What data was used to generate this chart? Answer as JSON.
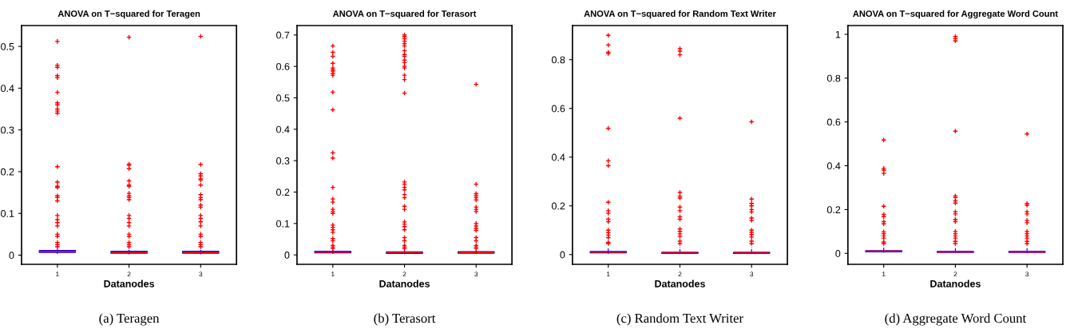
{
  "chart_data": [
    {
      "type": "box",
      "title": "ANOVA on T−squared for Teragen",
      "xlabel": "Datanodes",
      "categories": [
        "1",
        "2",
        "3"
      ],
      "color": "#0000ff",
      "ylim": [
        -0.022,
        0.55
      ],
      "yticks": [
        0,
        0.1,
        0.2,
        0.3,
        0.4,
        0.5
      ],
      "annotations": [
        "(a) Teragen"
      ],
      "grid": false,
      "legend": false,
      "boxes": [
        {
          "low": 0.003,
          "q1": 0.007,
          "median": 0.009,
          "q3": 0.011,
          "high": 0.015,
          "outliers": [
            0.512,
            0.455,
            0.45,
            0.43,
            0.425,
            0.39,
            0.365,
            0.36,
            0.35,
            0.345,
            0.34,
            0.212,
            0.175,
            0.165,
            0.162,
            0.142,
            0.138,
            0.13,
            0.095,
            0.085,
            0.078,
            0.07,
            0.05,
            0.045,
            0.03,
            0.025,
            0.02
          ]
        },
        {
          "low": 0.002,
          "q1": 0.005,
          "median": 0.007,
          "q3": 0.009,
          "high": 0.013,
          "outliers": [
            0.522,
            0.218,
            0.215,
            0.207,
            0.178,
            0.168,
            0.165,
            0.148,
            0.142,
            0.138,
            0.133,
            0.095,
            0.088,
            0.078,
            0.07,
            0.05,
            0.045,
            0.03,
            0.025,
            0.02
          ]
        },
        {
          "low": 0.002,
          "q1": 0.005,
          "median": 0.007,
          "q3": 0.009,
          "high": 0.013,
          "outliers": [
            0.524,
            0.217,
            0.195,
            0.19,
            0.183,
            0.18,
            0.168,
            0.145,
            0.138,
            0.133,
            0.12,
            0.115,
            0.095,
            0.088,
            0.08,
            0.07,
            0.05,
            0.045,
            0.03,
            0.025,
            0.02
          ]
        }
      ]
    },
    {
      "type": "box",
      "title": "ANOVA on T−squared for Terasort",
      "xlabel": "Datanodes",
      "categories": [
        "1",
        "2",
        "3"
      ],
      "color": "#0000ff",
      "ylim": [
        -0.03,
        0.73
      ],
      "yticks": [
        0,
        0.1,
        0.2,
        0.3,
        0.4,
        0.5,
        0.6,
        0.7
      ],
      "annotations": [
        "(b) Terasort"
      ],
      "grid": false,
      "legend": false,
      "boxes": [
        {
          "low": 0.003,
          "q1": 0.007,
          "median": 0.009,
          "q3": 0.011,
          "high": 0.015,
          "outliers": [
            0.665,
            0.645,
            0.632,
            0.61,
            0.595,
            0.59,
            0.585,
            0.578,
            0.572,
            0.518,
            0.462,
            0.325,
            0.308,
            0.215,
            0.178,
            0.168,
            0.145,
            0.138,
            0.132,
            0.095,
            0.088,
            0.08,
            0.072,
            0.052,
            0.045,
            0.03,
            0.025,
            0.02
          ]
        },
        {
          "low": 0.002,
          "q1": 0.005,
          "median": 0.007,
          "q3": 0.009,
          "high": 0.013,
          "outliers": [
            0.7,
            0.695,
            0.688,
            0.68,
            0.672,
            0.665,
            0.65,
            0.638,
            0.632,
            0.62,
            0.612,
            0.6,
            0.595,
            0.572,
            0.558,
            0.515,
            0.232,
            0.225,
            0.215,
            0.207,
            0.192,
            0.182,
            0.155,
            0.145,
            0.105,
            0.098,
            0.09,
            0.08,
            0.055,
            0.045,
            0.03,
            0.025,
            0.02
          ]
        },
        {
          "low": 0.003,
          "q1": 0.006,
          "median": 0.008,
          "q3": 0.01,
          "high": 0.014,
          "outliers": [
            0.543,
            0.225,
            0.195,
            0.188,
            0.182,
            0.175,
            0.152,
            0.145,
            0.138,
            0.1,
            0.092,
            0.085,
            0.078,
            0.055,
            0.045,
            0.03,
            0.025,
            0.02
          ]
        }
      ]
    },
    {
      "type": "box",
      "title": "ANOVA on T−squared for Random Text Writer",
      "xlabel": "Datanodes",
      "categories": [
        "1",
        "2",
        "3"
      ],
      "color": "#0000ff",
      "ylim": [
        -0.04,
        0.94
      ],
      "yticks": [
        0,
        0.2,
        0.4,
        0.6,
        0.8
      ],
      "annotations": [
        "(c) Random Text Writer"
      ],
      "grid": false,
      "legend": false,
      "boxes": [
        {
          "low": 0.003,
          "q1": 0.008,
          "median": 0.01,
          "q3": 0.012,
          "high": 0.03,
          "outliers": [
            0.9,
            0.86,
            0.83,
            0.825,
            0.518,
            0.385,
            0.365,
            0.215,
            0.18,
            0.17,
            0.145,
            0.135,
            0.1,
            0.09,
            0.08,
            0.07,
            0.05,
            0.045
          ]
        },
        {
          "low": 0.002,
          "q1": 0.005,
          "median": 0.007,
          "q3": 0.009,
          "high": 0.03,
          "outliers": [
            0.845,
            0.835,
            0.82,
            0.56,
            0.255,
            0.24,
            0.232,
            0.195,
            0.18,
            0.155,
            0.145,
            0.105,
            0.095,
            0.085,
            0.075,
            0.055,
            0.045
          ]
        },
        {
          "low": 0.002,
          "q1": 0.005,
          "median": 0.007,
          "q3": 0.009,
          "high": 0.03,
          "outliers": [
            0.545,
            0.228,
            0.21,
            0.2,
            0.185,
            0.175,
            0.15,
            0.14,
            0.1,
            0.092,
            0.082,
            0.072,
            0.055,
            0.045
          ]
        }
      ]
    },
    {
      "type": "box",
      "title": "ANOVA on T−squared for Aggregate Word Count",
      "xlabel": "Datanodes",
      "categories": [
        "1",
        "2",
        "3"
      ],
      "color": "#0000ff",
      "ylim": [
        -0.05,
        1.04
      ],
      "yticks": [
        0,
        0.2,
        0.4,
        0.6,
        0.8,
        1
      ],
      "annotations": [
        "(d) Aggregate Word Count"
      ],
      "grid": false,
      "legend": false,
      "boxes": [
        {
          "low": 0.003,
          "q1": 0.008,
          "median": 0.01,
          "q3": 0.012,
          "high": 0.03,
          "outliers": [
            0.518,
            0.388,
            0.38,
            0.365,
            0.215,
            0.178,
            0.168,
            0.145,
            0.135,
            0.098,
            0.09,
            0.08,
            0.07,
            0.052,
            0.045
          ]
        },
        {
          "low": 0.002,
          "q1": 0.005,
          "median": 0.007,
          "q3": 0.009,
          "high": 0.03,
          "outliers": [
            0.99,
            0.98,
            0.97,
            0.558,
            0.262,
            0.255,
            0.24,
            0.23,
            0.19,
            0.18,
            0.155,
            0.145,
            0.1,
            0.09,
            0.08,
            0.07,
            0.055,
            0.045
          ]
        },
        {
          "low": 0.002,
          "q1": 0.005,
          "median": 0.007,
          "q3": 0.009,
          "high": 0.03,
          "outliers": [
            0.545,
            0.228,
            0.22,
            0.19,
            0.18,
            0.15,
            0.14,
            0.1,
            0.09,
            0.08,
            0.07,
            0.055,
            0.045
          ]
        }
      ]
    }
  ]
}
